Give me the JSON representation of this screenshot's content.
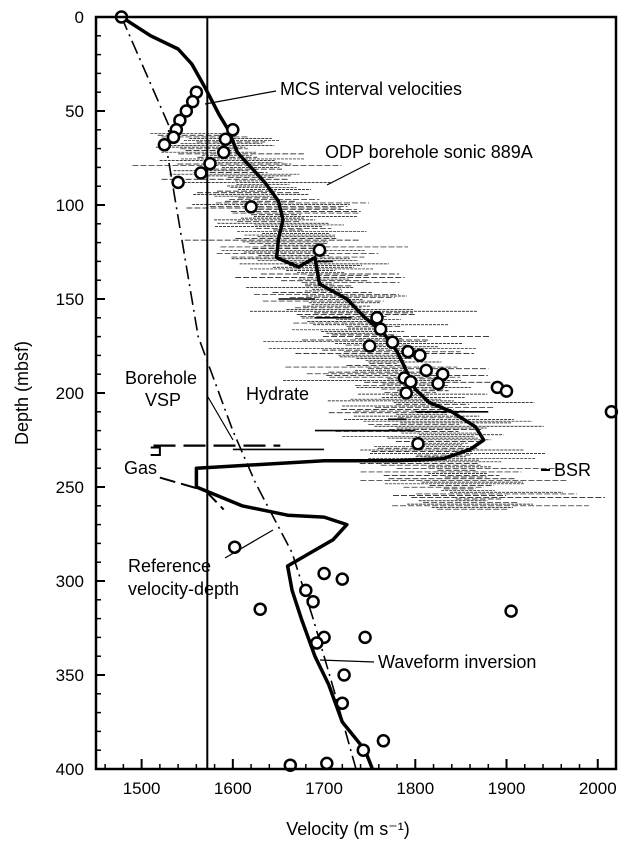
{
  "chart_data": {
    "type": "line",
    "xlabel": "Velocity (m s⁻¹)",
    "ylabel": "Depth (mbsf)",
    "xlim": [
      1450,
      2020
    ],
    "ylim": [
      0,
      400
    ],
    "y_inverted": true,
    "x_ticks": [
      1500,
      1600,
      1700,
      1800,
      1900,
      2000
    ],
    "y_ticks": [
      0,
      50,
      100,
      150,
      200,
      250,
      300,
      350,
      400
    ],
    "annotations": [
      {
        "id": "mcs",
        "text": "MCS interval velocities"
      },
      {
        "id": "odp",
        "text": "ODP borehole sonic 889A"
      },
      {
        "id": "vsp1",
        "text": "Borehole"
      },
      {
        "id": "vsp2",
        "text": "VSP"
      },
      {
        "id": "hydrate",
        "text": "Hydrate"
      },
      {
        "id": "gas",
        "text": "Gas"
      },
      {
        "id": "bsr",
        "text": "BSR"
      },
      {
        "id": "ref1",
        "text": "Reference"
      },
      {
        "id": "ref2",
        "text": "velocity-depth"
      },
      {
        "id": "wave",
        "text": "Waveform inversion"
      }
    ],
    "series": [
      {
        "style": "thick-line",
        "points": [
          [
            1478,
            0
          ],
          [
            1510,
            10
          ],
          [
            1540,
            17
          ],
          [
            1555,
            25
          ],
          [
            1570,
            38
          ],
          [
            1585,
            52
          ],
          [
            1595,
            60
          ],
          [
            1605,
            72
          ],
          [
            1620,
            80
          ],
          [
            1635,
            88
          ],
          [
            1650,
            98
          ],
          [
            1655,
            108
          ],
          [
            1650,
            118
          ],
          [
            1648,
            128
          ],
          [
            1672,
            133
          ],
          [
            1690,
            128
          ],
          [
            1695,
            142
          ],
          [
            1725,
            150
          ],
          [
            1745,
            160
          ],
          [
            1765,
            168
          ],
          [
            1780,
            178
          ],
          [
            1790,
            188
          ],
          [
            1800,
            198
          ],
          [
            1815,
            205
          ],
          [
            1840,
            210
          ],
          [
            1866,
            218
          ],
          [
            1875,
            225
          ],
          [
            1860,
            230
          ],
          [
            1830,
            235
          ],
          [
            1780,
            236
          ],
          [
            1700,
            236
          ],
          [
            1560,
            240
          ],
          [
            1560,
            250
          ],
          [
            1610,
            260
          ],
          [
            1660,
            265
          ],
          [
            1700,
            266
          ],
          [
            1725,
            270
          ],
          [
            1710,
            278
          ],
          [
            1660,
            292
          ],
          [
            1665,
            305
          ],
          [
            1675,
            320
          ],
          [
            1690,
            340
          ],
          [
            1705,
            355
          ],
          [
            1720,
            375
          ],
          [
            1745,
            390
          ],
          [
            1753,
            400
          ]
        ]
      },
      {
        "style": "thin-line",
        "points": [
          [
            1572,
            0
          ],
          [
            1572,
            400
          ]
        ]
      },
      {
        "style": "dash-dot",
        "points": [
          [
            1478,
            0
          ],
          [
            1530,
            58
          ],
          [
            1528,
            72
          ],
          [
            1562,
            170
          ],
          [
            1600,
            220
          ],
          [
            1625,
            248
          ],
          [
            1665,
            285
          ],
          [
            1688,
            320
          ],
          [
            1712,
            360
          ],
          [
            1735,
            400
          ]
        ]
      },
      {
        "style": "long-dash",
        "points": [
          [
            1513,
            228
          ],
          [
            1652,
            228
          ]
        ]
      }
    ],
    "borehole_vsp_points": [
      [
        1510,
        229
      ],
      [
        1520,
        229
      ],
      [
        1520,
        233
      ],
      [
        1510,
        233
      ]
    ],
    "gas_lines": [
      [
        [
          1520,
          245
        ],
        [
          1570,
          252
        ]
      ],
      [
        [
          1570,
          252
        ],
        [
          1590,
          262
        ]
      ]
    ],
    "circles": [
      [
        1478,
        0
      ],
      [
        1560,
        40
      ],
      [
        1556,
        45
      ],
      [
        1549,
        50
      ],
      [
        1542,
        55
      ],
      [
        1538,
        60
      ],
      [
        1535,
        64
      ],
      [
        1525,
        68
      ],
      [
        1600,
        60
      ],
      [
        1592,
        65
      ],
      [
        1590,
        72
      ],
      [
        1575,
        78
      ],
      [
        1565,
        83
      ],
      [
        1540,
        88
      ],
      [
        1620,
        101
      ],
      [
        1695,
        124
      ],
      [
        1758,
        160
      ],
      [
        1762,
        166
      ],
      [
        1775,
        173
      ],
      [
        1750,
        175
      ],
      [
        1792,
        178
      ],
      [
        1805,
        180
      ],
      [
        1812,
        188
      ],
      [
        1788,
        192
      ],
      [
        1795,
        194
      ],
      [
        1830,
        190
      ],
      [
        1825,
        195
      ],
      [
        1790,
        200
      ],
      [
        1890,
        197
      ],
      [
        1900,
        199
      ],
      [
        2015,
        210
      ],
      [
        1803,
        227
      ],
      [
        1602,
        282
      ],
      [
        1700,
        296
      ],
      [
        1720,
        299
      ],
      [
        1680,
        305
      ],
      [
        1688,
        311
      ],
      [
        1630,
        315
      ],
      [
        1905,
        316
      ],
      [
        1700,
        330
      ],
      [
        1745,
        330
      ],
      [
        1692,
        333
      ],
      [
        1722,
        350
      ],
      [
        1720,
        365
      ],
      [
        1765,
        385
      ],
      [
        1743,
        390
      ],
      [
        1663,
        398
      ],
      [
        1703,
        397
      ]
    ]
  }
}
